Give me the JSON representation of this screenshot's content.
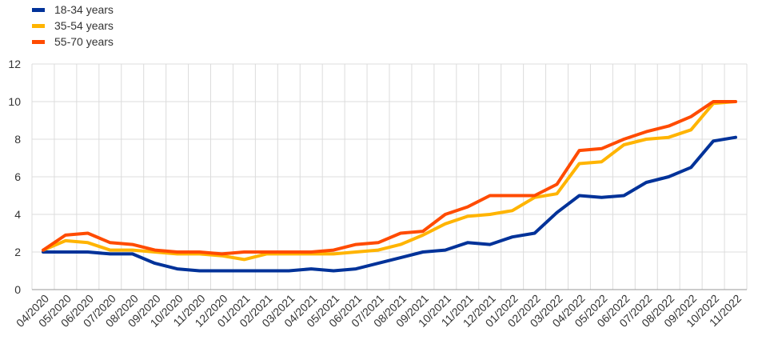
{
  "chart_data": {
    "type": "line",
    "title": "",
    "xlabel": "",
    "ylabel": "",
    "ylim": [
      0,
      12
    ],
    "yticks": [
      0,
      2,
      4,
      6,
      8,
      10,
      12
    ],
    "grid": "vertical and horizontal",
    "legend_position": "top-left",
    "categories": [
      "04/2020",
      "05/2020",
      "06/2020",
      "07/2020",
      "08/2020",
      "09/2020",
      "10/2020",
      "11/2020",
      "12/2020",
      "01/2021",
      "02/2021",
      "03/2021",
      "04/2021",
      "05/2021",
      "06/2021",
      "07/2021",
      "08/2021",
      "09/2021",
      "10/2021",
      "11/2021",
      "12/2021",
      "01/2022",
      "02/2022",
      "03/2022",
      "04/2022",
      "05/2022",
      "06/2022",
      "07/2022",
      "08/2022",
      "09/2022",
      "10/2022",
      "11/2022"
    ],
    "series": [
      {
        "name": "18-34 years",
        "color": "#003299",
        "values": [
          2.0,
          2.0,
          2.0,
          1.9,
          1.9,
          1.4,
          1.1,
          1.0,
          1.0,
          1.0,
          1.0,
          1.0,
          1.1,
          1.0,
          1.1,
          1.4,
          1.7,
          2.0,
          2.1,
          2.5,
          2.4,
          2.8,
          3.0,
          4.1,
          5.0,
          4.9,
          5.0,
          5.7,
          6.0,
          6.5,
          7.9,
          8.1
        ]
      },
      {
        "name": "35-54 years",
        "color": "#FFB400",
        "values": [
          2.1,
          2.6,
          2.5,
          2.1,
          2.1,
          2.0,
          1.9,
          1.9,
          1.8,
          1.6,
          1.9,
          1.9,
          1.9,
          1.9,
          2.0,
          2.1,
          2.4,
          2.9,
          3.5,
          3.9,
          4.0,
          4.2,
          4.9,
          5.1,
          6.7,
          6.8,
          7.7,
          8.0,
          8.1,
          8.5,
          9.9,
          10.0
        ]
      },
      {
        "name": "55-70 years",
        "color": "#FF4B00",
        "values": [
          2.1,
          2.9,
          3.0,
          2.5,
          2.4,
          2.1,
          2.0,
          2.0,
          1.9,
          2.0,
          2.0,
          2.0,
          2.0,
          2.1,
          2.4,
          2.5,
          3.0,
          3.1,
          4.0,
          4.4,
          5.0,
          5.0,
          5.0,
          5.6,
          7.4,
          7.5,
          8.0,
          8.4,
          8.7,
          9.2,
          10.0,
          10.0
        ]
      }
    ]
  }
}
